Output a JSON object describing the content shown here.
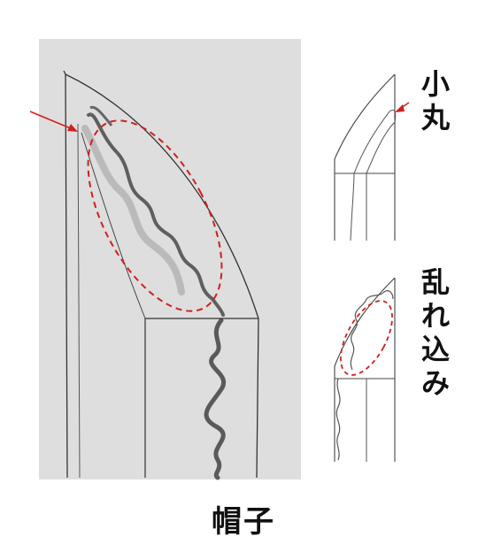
{
  "labels": {
    "komaru": [
      "小",
      "丸"
    ],
    "midarekomi": [
      "乱",
      "れ",
      "込",
      "み"
    ],
    "caption": "帽子"
  },
  "colors": {
    "annotation_red": "#d11f1f",
    "line_dark": "#333333",
    "photo_bg": "#dedede"
  }
}
